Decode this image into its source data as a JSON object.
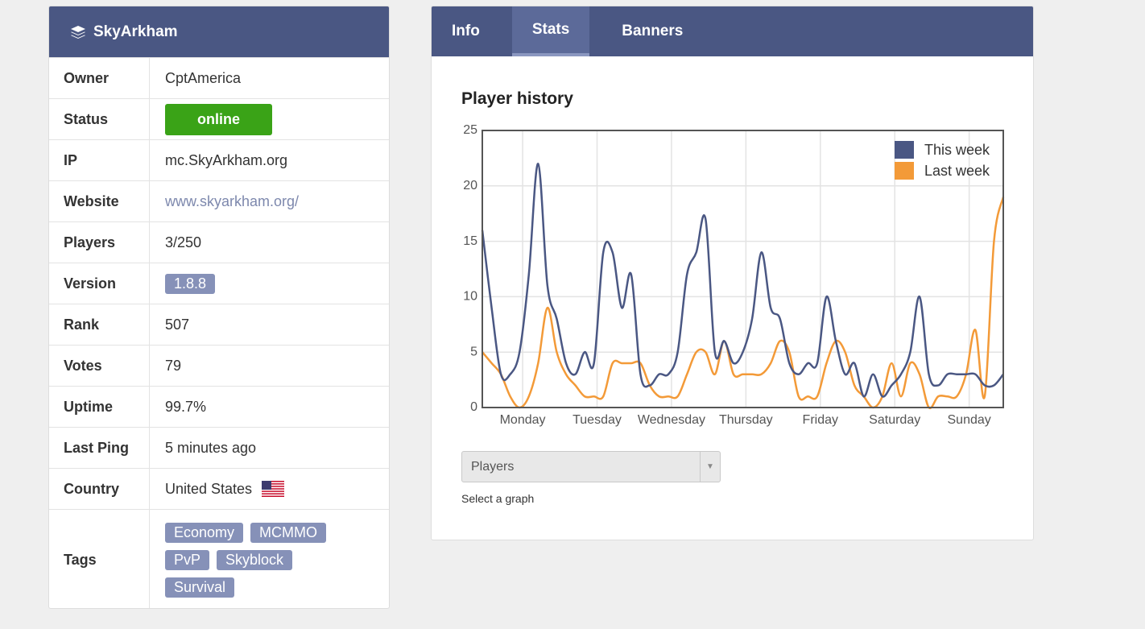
{
  "sidebar": {
    "title": "SkyArkham",
    "rows": [
      {
        "label": "Owner",
        "value": "CptAmerica"
      },
      {
        "label": "Status",
        "value": "online"
      },
      {
        "label": "IP",
        "value": "mc.SkyArkham.org"
      },
      {
        "label": "Website",
        "value": "www.skyarkham.org/"
      },
      {
        "label": "Players",
        "value": "3/250"
      },
      {
        "label": "Version",
        "value": "1.8.8"
      },
      {
        "label": "Rank",
        "value": "507"
      },
      {
        "label": "Votes",
        "value": "79"
      },
      {
        "label": "Uptime",
        "value": "99.7%"
      },
      {
        "label": "Last Ping",
        "value": "5 minutes ago"
      },
      {
        "label": "Country",
        "value": "United States"
      }
    ],
    "tags": {
      "label": "Tags",
      "items": [
        "Economy",
        "MCMMO",
        "PvP",
        "Skyblock",
        "Survival"
      ]
    }
  },
  "tabs": [
    "Info",
    "Stats",
    "Banners"
  ],
  "chart_data": {
    "type": "line",
    "title": "Player history",
    "x": [
      0,
      3,
      6,
      9,
      12,
      15,
      18,
      21,
      24,
      27,
      30,
      33,
      36,
      39,
      42,
      45,
      48,
      51,
      54,
      57,
      60,
      63,
      66,
      69,
      72,
      75,
      78,
      81,
      84,
      87,
      90,
      93,
      96,
      99,
      102,
      105,
      108,
      111,
      114,
      117,
      120,
      123,
      126,
      129,
      132,
      135,
      138,
      141,
      144,
      147,
      150,
      153,
      156,
      159,
      162,
      165,
      168
    ],
    "series": [
      {
        "name": "This week",
        "color": "#4a5783",
        "values": [
          16,
          9,
          3,
          3,
          5,
          12,
          22,
          11,
          8,
          4,
          3,
          5,
          4,
          14,
          14,
          9,
          12,
          3,
          2,
          3,
          3,
          5,
          12,
          14,
          17,
          5,
          6,
          4,
          5,
          8,
          14,
          9,
          8,
          4,
          3,
          4,
          4,
          10,
          6,
          3,
          4,
          1,
          3,
          1,
          2,
          3,
          5,
          10,
          3,
          2,
          3,
          3,
          3,
          3,
          2,
          2,
          3
        ]
      },
      {
        "name": "Last week",
        "color": "#f39a38",
        "values": [
          5,
          4,
          3,
          1,
          0,
          1,
          4,
          9,
          5,
          3,
          2,
          1,
          1,
          1,
          4,
          4,
          4,
          4,
          2,
          1,
          1,
          1,
          3,
          5,
          5,
          3,
          6,
          3,
          3,
          3,
          3,
          4,
          6,
          5,
          1,
          1,
          1,
          4,
          6,
          5,
          2,
          1,
          0,
          1,
          4,
          1,
          4,
          3,
          0,
          1,
          1,
          1,
          3,
          7,
          1,
          15,
          19
        ]
      }
    ],
    "xlim": [
      0,
      168
    ],
    "xticks": [
      {
        "value": 13,
        "label": "Monday"
      },
      {
        "value": 37,
        "label": "Tuesday"
      },
      {
        "value": 61,
        "label": "Wednesday"
      },
      {
        "value": 85,
        "label": "Thursday"
      },
      {
        "value": 109,
        "label": "Friday"
      },
      {
        "value": 133,
        "label": "Saturday"
      },
      {
        "value": 157,
        "label": "Sunday"
      }
    ],
    "ylim": [
      0,
      25
    ],
    "yticks": [
      0,
      5,
      10,
      15,
      20,
      25
    ],
    "grid": true,
    "legend": "upper right"
  },
  "select": {
    "value": "Players",
    "hint": "Select a graph"
  }
}
